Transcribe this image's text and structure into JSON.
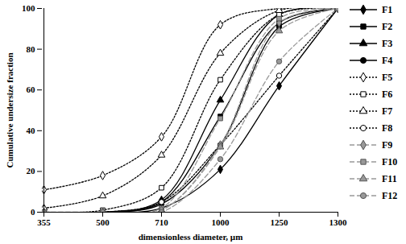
{
  "chart_data": {
    "type": "line",
    "x_label": "dimensionless diameter, µm",
    "y_label": "Cumulative undersize fraction",
    "categories": [
      "355",
      "500",
      "710",
      "1000",
      "1250",
      "1300"
    ],
    "ylim": [
      0,
      100
    ],
    "yticks": [
      0,
      20,
      40,
      60,
      80,
      100
    ],
    "grid": false,
    "legend": "right",
    "series": [
      {
        "name": "F1",
        "color": "#000000",
        "marker": "diamond",
        "line_style": "solid",
        "values": [
          0,
          0,
          2,
          21,
          62,
          100
        ]
      },
      {
        "name": "F2",
        "color": "#000000",
        "marker": "square",
        "line_style": "solid",
        "values": [
          0,
          0,
          5,
          47,
          93,
          100
        ]
      },
      {
        "name": "F3",
        "color": "#000000",
        "marker": "triangle",
        "line_style": "solid",
        "values": [
          0,
          0,
          6,
          55,
          97,
          100
        ]
      },
      {
        "name": "F4",
        "color": "#000000",
        "marker": "circle",
        "line_style": "solid",
        "values": [
          0,
          0,
          4,
          33,
          91,
          100
        ]
      },
      {
        "name": "F5",
        "color": "#000000",
        "marker": "diamond-open",
        "line_style": "dotted",
        "values": [
          11,
          18,
          37,
          92,
          100,
          100
        ]
      },
      {
        "name": "F6",
        "color": "#000000",
        "marker": "square-open",
        "line_style": "dotted",
        "values": [
          0,
          1,
          12,
          65,
          97,
          100
        ]
      },
      {
        "name": "F7",
        "color": "#000000",
        "marker": "triangle-open",
        "line_style": "dotted",
        "values": [
          2,
          8,
          28,
          78,
          99,
          100
        ]
      },
      {
        "name": "F8",
        "color": "#000000",
        "marker": "circle-open",
        "line_style": "dotted",
        "values": [
          0,
          0,
          5,
          33,
          67,
          100
        ]
      },
      {
        "name": "F9",
        "color": "#999999",
        "marker": "diamond",
        "line_style": "dashed",
        "values": [
          0,
          0,
          1,
          33,
          93,
          100
        ]
      },
      {
        "name": "F10",
        "color": "#999999",
        "marker": "square",
        "line_style": "dashed",
        "values": [
          0,
          0,
          2,
          46,
          95,
          100
        ]
      },
      {
        "name": "F11",
        "color": "#999999",
        "marker": "triangle",
        "line_style": "dashed",
        "values": [
          0,
          0,
          1,
          32,
          89,
          100
        ]
      },
      {
        "name": "F12",
        "color": "#999999",
        "marker": "circle",
        "line_style": "dashed",
        "values": [
          0,
          0,
          0,
          26,
          74,
          100
        ]
      }
    ]
  }
}
